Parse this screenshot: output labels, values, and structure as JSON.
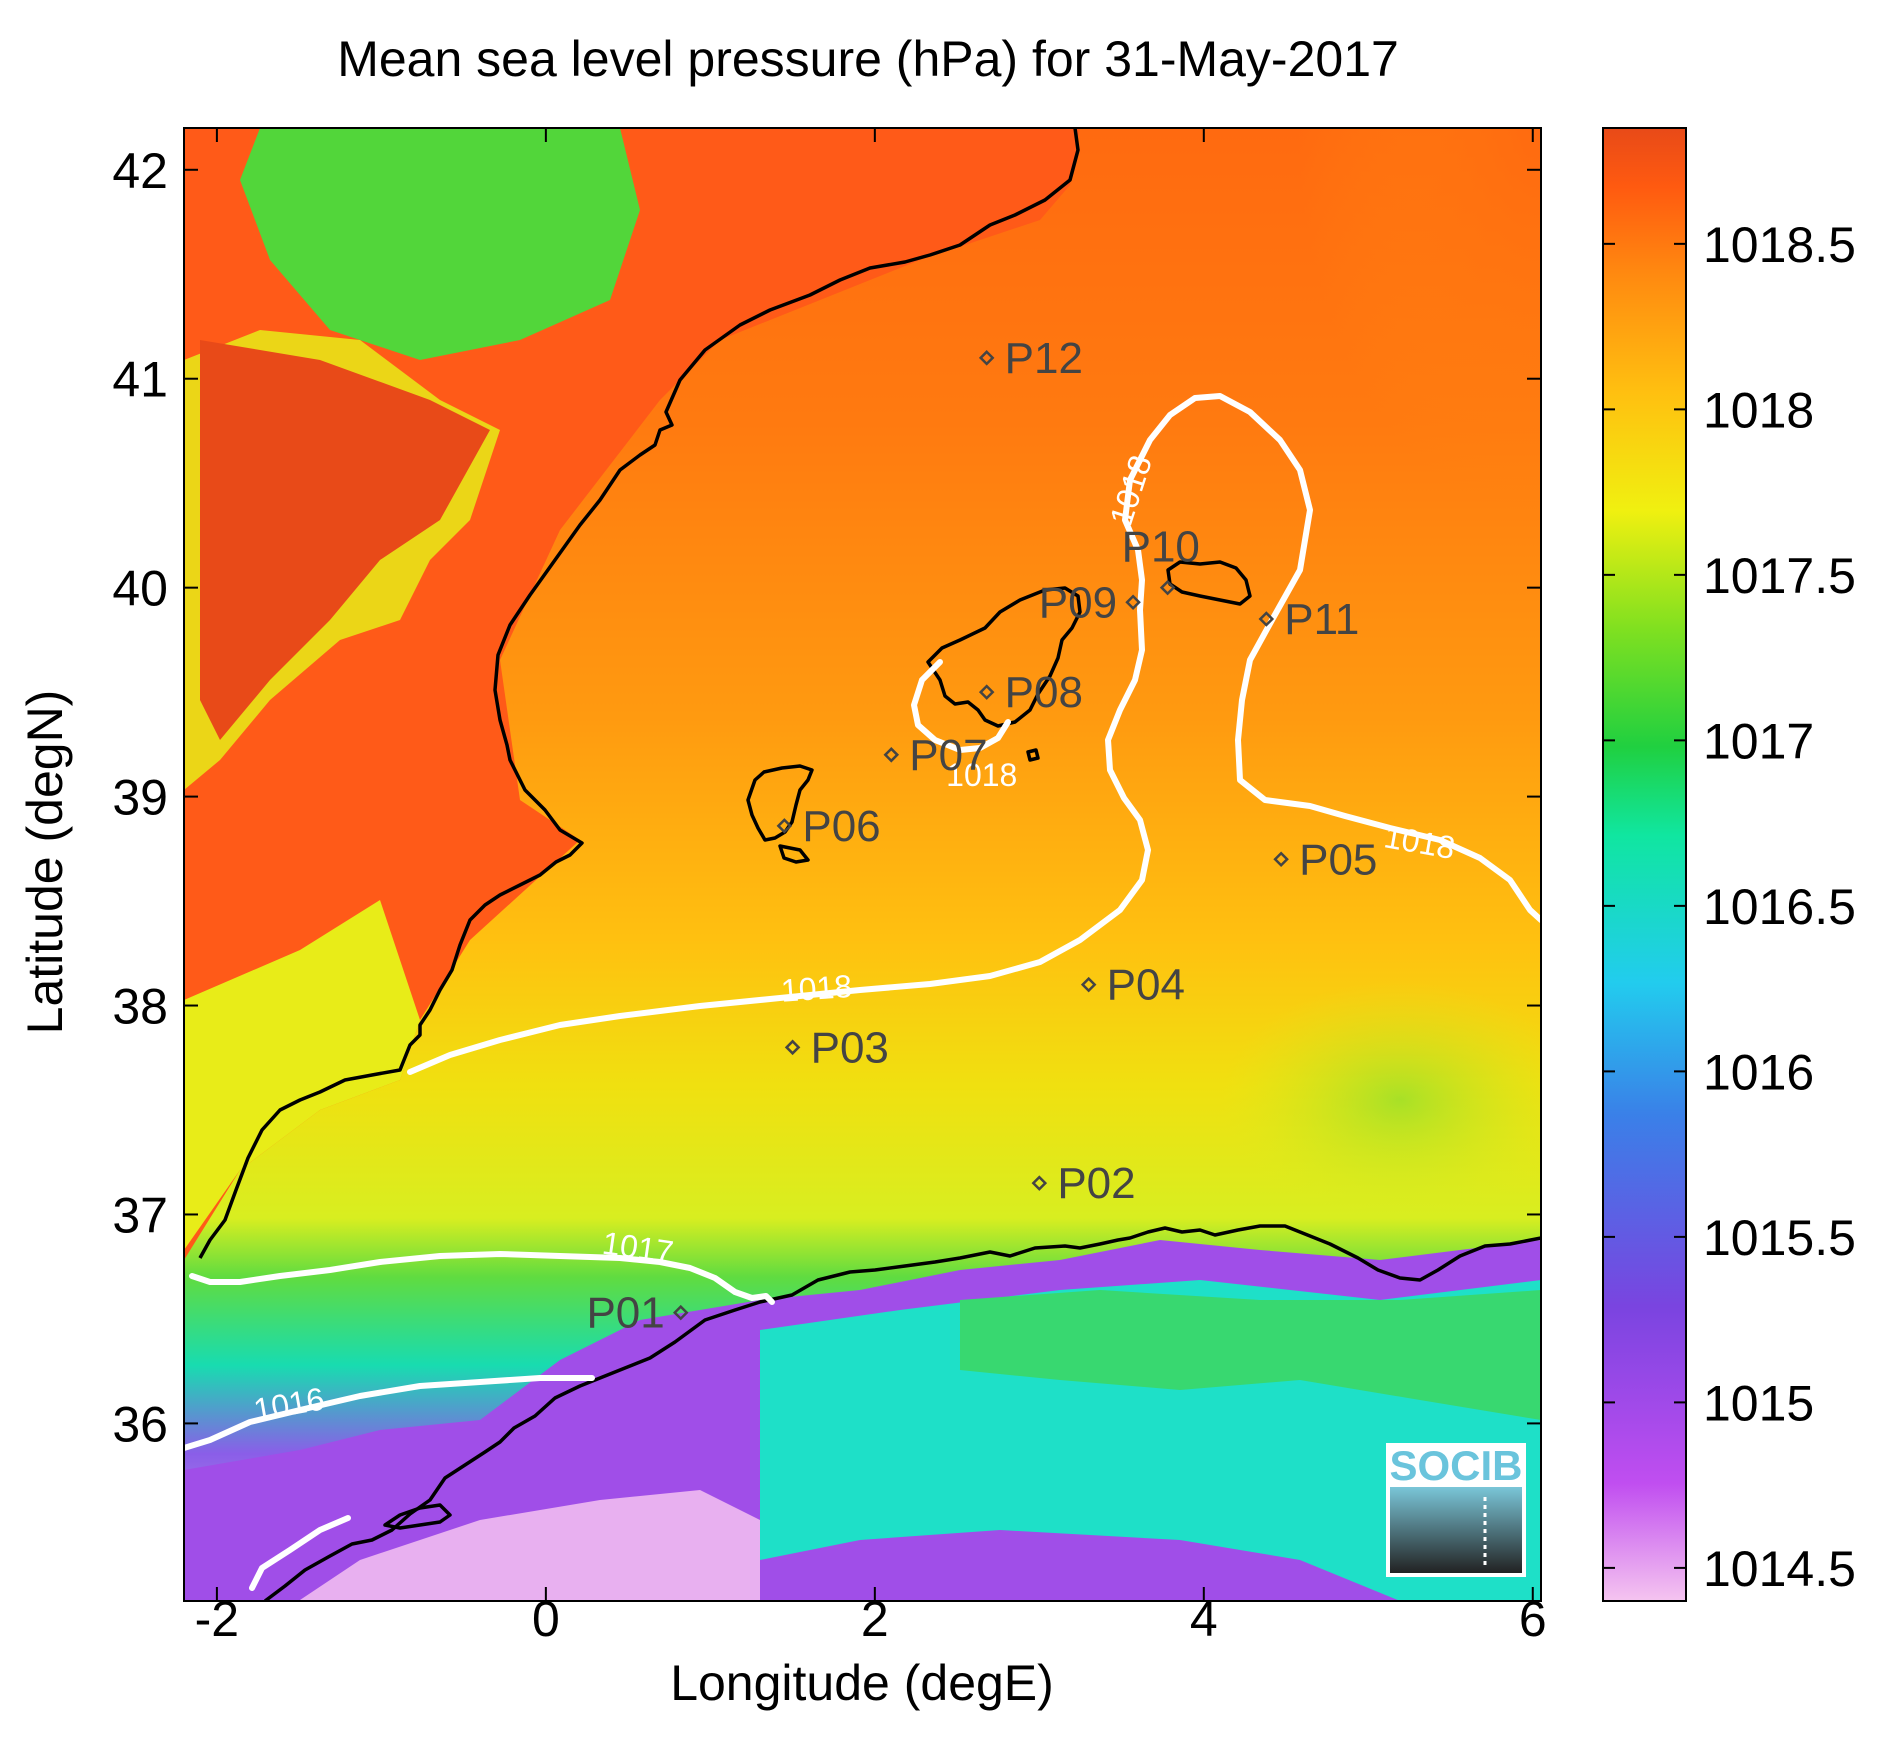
{
  "title": "Mean sea level pressure (hPa) for 31-May-2017",
  "map": {
    "xlabel": "Longitude (degE)",
    "ylabel": "Latitude (degN)",
    "xlim": [
      -2.2,
      6.05
    ],
    "ylim": [
      35.15,
      42.2
    ],
    "xticks": [
      -2,
      0,
      2,
      4,
      6
    ],
    "yticks": [
      36,
      37,
      38,
      39,
      40,
      41,
      42
    ],
    "xtick_labels": [
      "-2",
      "0",
      "2",
      "4",
      "6"
    ],
    "ytick_labels": [
      "36",
      "37",
      "38",
      "39",
      "40",
      "41",
      "42"
    ]
  },
  "colorbar": {
    "range": [
      1014.4,
      1018.85
    ],
    "ticks": [
      1014.5,
      1015,
      1015.5,
      1016,
      1016.5,
      1017,
      1017.5,
      1018,
      1018.5
    ],
    "tick_labels": [
      "1014.5",
      "1015",
      "1015.5",
      "1016",
      "1016.5",
      "1017",
      "1017.5",
      "1018",
      "1018.5"
    ],
    "colors": [
      "#f5c4f0",
      "#c04ef0",
      "#7a44e0",
      "#3a80e8",
      "#22ccee",
      "#10e6a0",
      "#20d040",
      "#80e020",
      "#f0f010",
      "#ffc010",
      "#ff8a10",
      "#ff5a10",
      "#e84a18"
    ]
  },
  "stations": [
    {
      "label": "P01",
      "lon": 0.82,
      "lat": 36.53
    },
    {
      "label": "P02",
      "lon": 3.0,
      "lat": 37.15
    },
    {
      "label": "P03",
      "lon": 1.5,
      "lat": 37.8
    },
    {
      "label": "P04",
      "lon": 3.3,
      "lat": 38.1
    },
    {
      "label": "P05",
      "lon": 4.47,
      "lat": 38.7
    },
    {
      "label": "P06",
      "lon": 1.45,
      "lat": 38.86
    },
    {
      "label": "P07",
      "lon": 2.1,
      "lat": 39.2
    },
    {
      "label": "P08",
      "lon": 2.68,
      "lat": 39.5
    },
    {
      "label": "P09",
      "lon": 3.57,
      "lat": 39.93
    },
    {
      "label": "P10",
      "lon": 3.78,
      "lat": 40.0
    },
    {
      "label": "P11",
      "lon": 4.38,
      "lat": 39.85
    },
    {
      "label": "P12",
      "lon": 2.68,
      "lat": 41.1
    }
  ],
  "contours": [
    {
      "level": "1018",
      "value": 1018
    },
    {
      "level": "1017",
      "value": 1017
    },
    {
      "level": "1016",
      "value": 1016
    }
  ],
  "contour_color": "#ffffff",
  "coastline_color": "#000000",
  "logo": {
    "text": "SOCIB",
    "text_color": "#6ac4dc"
  }
}
